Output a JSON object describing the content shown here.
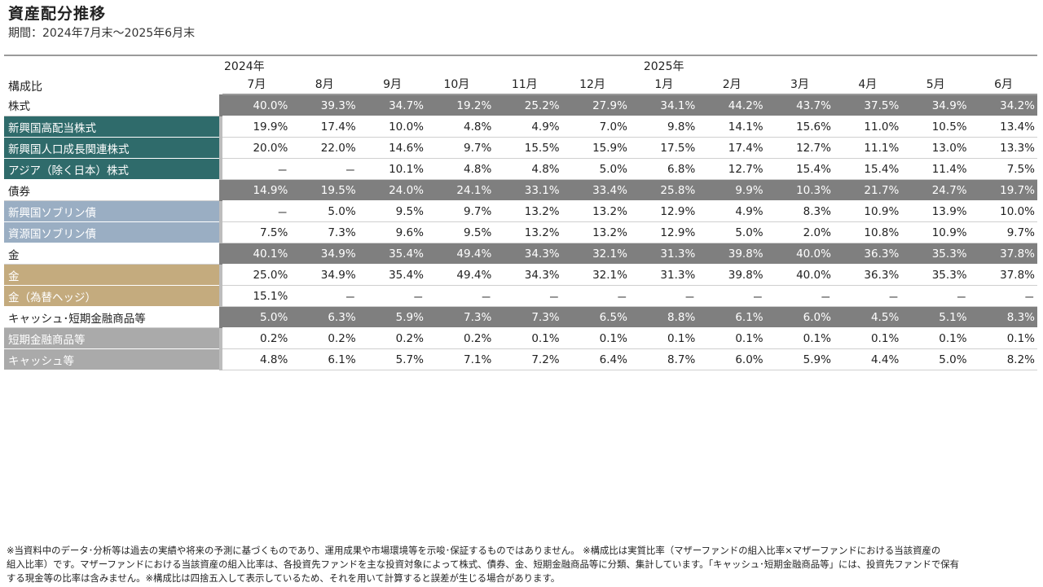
{
  "title": "資産配分推移",
  "subtitle": "期間：2024年7月末〜2025年6月末",
  "table": {
    "corner_label": "構成比",
    "year_labels": [
      "2024年",
      "2025年"
    ],
    "months": [
      "7月",
      "8月",
      "9月",
      "10月",
      "11月",
      "12月",
      "1月",
      "2月",
      "3月",
      "4月",
      "5月",
      "6月"
    ],
    "rows": [
      {
        "label": "株式",
        "kind": "category",
        "color": "#7f7f7f",
        "values": [
          "40.0%",
          "39.3%",
          "34.7%",
          "19.2%",
          "25.2%",
          "27.9%",
          "34.1%",
          "44.2%",
          "43.7%",
          "37.5%",
          "34.9%",
          "34.2%"
        ]
      },
      {
        "label": "新興国高配当株式",
        "kind": "sub",
        "color": "#2f6b6b",
        "values": [
          "19.9%",
          "17.4%",
          "10.0%",
          "4.8%",
          "4.9%",
          "7.0%",
          "9.8%",
          "14.1%",
          "15.6%",
          "11.0%",
          "10.5%",
          "13.4%"
        ]
      },
      {
        "label": "新興国人口成長関連株式",
        "kind": "sub",
        "color": "#2f6b6b",
        "values": [
          "20.0%",
          "22.0%",
          "14.6%",
          "9.7%",
          "15.5%",
          "15.9%",
          "17.5%",
          "17.4%",
          "12.7%",
          "11.1%",
          "13.0%",
          "13.3%"
        ]
      },
      {
        "label": "アジア（除く日本）株式",
        "kind": "sub",
        "color": "#2f6b6b",
        "values": [
          "－",
          "－",
          "10.1%",
          "4.8%",
          "4.8%",
          "5.0%",
          "6.8%",
          "12.7%",
          "15.4%",
          "15.4%",
          "11.4%",
          "7.5%"
        ]
      },
      {
        "label": "債券",
        "kind": "category",
        "color": "#7f7f7f",
        "values": [
          "14.9%",
          "19.5%",
          "24.0%",
          "24.1%",
          "33.1%",
          "33.4%",
          "25.8%",
          "9.9%",
          "10.3%",
          "21.7%",
          "24.7%",
          "19.7%"
        ]
      },
      {
        "label": "新興国ソブリン債",
        "kind": "sub",
        "color": "#9aaec3",
        "values": [
          "－",
          "5.0%",
          "9.5%",
          "9.7%",
          "13.2%",
          "13.2%",
          "12.9%",
          "4.9%",
          "8.3%",
          "10.9%",
          "13.9%",
          "10.0%"
        ]
      },
      {
        "label": "資源国ソブリン債",
        "kind": "sub",
        "color": "#9aaec3",
        "values": [
          "7.5%",
          "7.3%",
          "9.6%",
          "9.5%",
          "13.2%",
          "13.2%",
          "12.9%",
          "5.0%",
          "2.0%",
          "10.8%",
          "10.9%",
          "9.7%"
        ]
      },
      {
        "label": "金",
        "kind": "category",
        "color": "#7f7f7f",
        "values": [
          "40.1%",
          "34.9%",
          "35.4%",
          "49.4%",
          "34.3%",
          "32.1%",
          "31.3%",
          "39.8%",
          "40.0%",
          "36.3%",
          "35.3%",
          "37.8%"
        ]
      },
      {
        "label": "金",
        "kind": "sub",
        "color": "#c4ab7e",
        "values": [
          "25.0%",
          "34.9%",
          "35.4%",
          "49.4%",
          "34.3%",
          "32.1%",
          "31.3%",
          "39.8%",
          "40.0%",
          "36.3%",
          "35.3%",
          "37.8%"
        ]
      },
      {
        "label": "金（為替ヘッジ）",
        "kind": "sub",
        "color": "#c4ab7e",
        "values": [
          "15.1%",
          "－",
          "－",
          "－",
          "－",
          "－",
          "－",
          "－",
          "－",
          "－",
          "－",
          "－"
        ]
      },
      {
        "label": "キャッシュ･短期金融商品等",
        "kind": "category",
        "color": "#7f7f7f",
        "values": [
          "5.0%",
          "6.3%",
          "5.9%",
          "7.3%",
          "7.3%",
          "6.5%",
          "8.8%",
          "6.1%",
          "6.0%",
          "4.5%",
          "5.1%",
          "8.3%"
        ]
      },
      {
        "label": "短期金融商品等",
        "kind": "sub",
        "color": "#aaaaaa",
        "values": [
          "0.2%",
          "0.2%",
          "0.2%",
          "0.2%",
          "0.1%",
          "0.1%",
          "0.1%",
          "0.1%",
          "0.1%",
          "0.1%",
          "0.1%",
          "0.1%"
        ]
      },
      {
        "label": "キャッシュ等",
        "kind": "sub",
        "color": "#aaaaaa",
        "values": [
          "4.8%",
          "6.1%",
          "5.7%",
          "7.1%",
          "7.2%",
          "6.4%",
          "8.7%",
          "6.0%",
          "5.9%",
          "4.4%",
          "5.0%",
          "8.2%"
        ]
      }
    ]
  },
  "footnote": [
    "※当資料中のデータ･分析等は過去の実績や将来の予測に基づくものであり、運用成果や市場環境等を示唆･保証するものではありません。 ※構成比は実質比率（マザーファンドの組入比率×マザーファンドにおける当該資産の",
    "組入比率）です。マザーファンドにおける当該資産の組入比率は、各投資先ファンドを主な投資対象によって株式、債券、金、短期金融商品等に分類、集計しています。「キャッシュ･短期金融商品等」には、投資先ファンドで保有",
    "する現金等の比率は含みません。※構成比は四捨五入して表示しているため、それを用いて計算すると誤差が生じる場合があります。"
  ]
}
